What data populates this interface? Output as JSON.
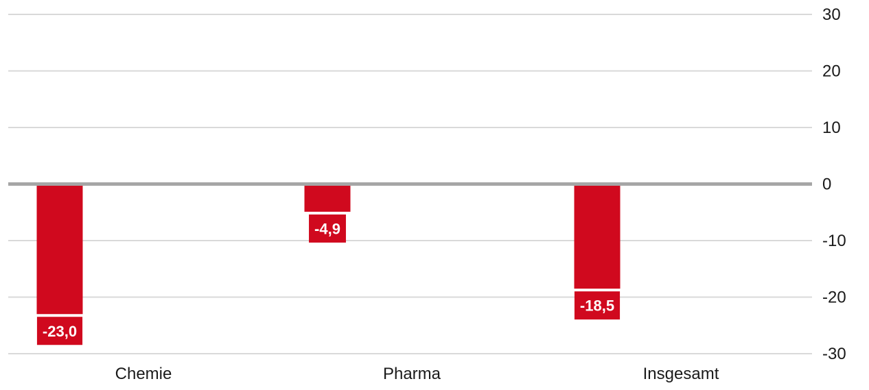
{
  "chart_data": {
    "type": "bar",
    "categories": [
      "Chemie",
      "Pharma",
      "Insgesamt"
    ],
    "values": [
      -23.0,
      -4.9,
      -18.5
    ],
    "data_labels": [
      "-23,0",
      "-4,9",
      "-18,5"
    ],
    "y_ticks": [
      30,
      20,
      10,
      0,
      -10,
      -20,
      -30
    ],
    "y_tick_labels": [
      "30",
      "20",
      "10",
      "0",
      "-10",
      "-20",
      "-30"
    ],
    "ylim": [
      -30,
      30
    ],
    "y_axis_position": "right",
    "grid": true,
    "title": "",
    "xlabel": "",
    "ylabel": ""
  },
  "colors": {
    "bar": "#d0091e",
    "grid": "#d9d9d9",
    "zero_line": "#a6a6a6",
    "label_text": "#ffffff"
  }
}
